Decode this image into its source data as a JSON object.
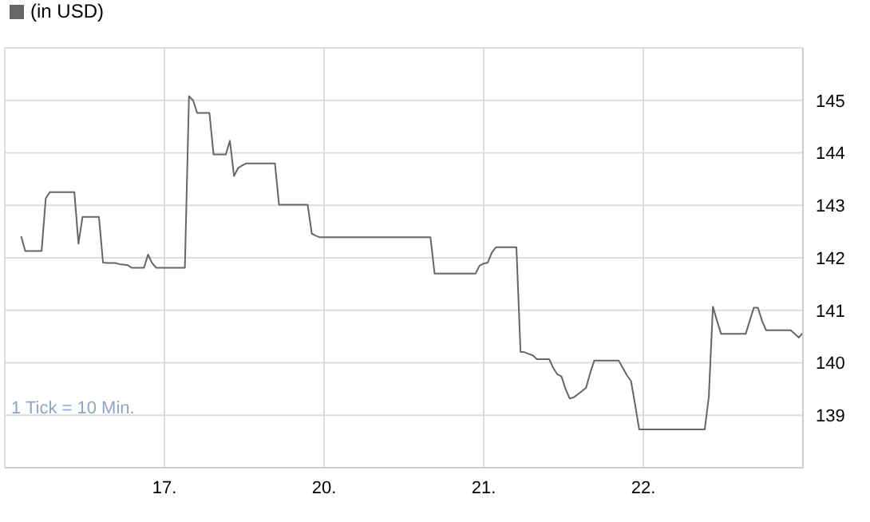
{
  "chart_data": {
    "type": "line",
    "annotations": [
      "1 Tick = 10 Min."
    ],
    "categories": [
      null,
      null,
      null,
      null,
      null,
      null,
      null,
      null,
      null,
      null,
      null,
      null,
      null,
      null,
      null,
      null,
      null,
      null,
      null,
      null,
      null,
      null,
      null,
      null,
      null,
      null,
      null,
      null,
      null,
      null,
      null,
      null,
      null,
      null,
      null,
      null,
      null,
      null,
      null,
      "17.",
      null,
      null,
      null,
      null,
      null,
      null,
      null,
      null,
      null,
      null,
      null,
      null,
      null,
      null,
      null,
      null,
      null,
      null,
      null,
      null,
      null,
      null,
      null,
      null,
      null,
      null,
      null,
      null,
      null,
      null,
      null,
      null,
      null,
      null,
      null,
      null,
      null,
      null,
      "20.",
      null,
      null,
      null,
      null,
      null,
      null,
      null,
      null,
      null,
      null,
      null,
      null,
      null,
      null,
      null,
      null,
      null,
      null,
      null,
      null,
      null,
      null,
      null,
      null,
      null,
      null,
      null,
      null,
      null,
      null,
      null,
      null,
      null,
      null,
      null,
      null,
      null,
      null,
      "21.",
      null,
      null,
      null,
      null,
      null,
      null,
      null,
      null,
      null,
      null,
      null,
      null,
      null,
      null,
      null,
      null,
      null,
      null,
      null,
      null,
      null,
      null,
      null,
      null,
      null,
      null,
      null,
      null,
      null,
      null,
      null,
      null,
      null,
      null,
      null,
      null,
      null,
      null,
      "22.",
      null,
      null,
      null,
      null,
      null,
      null,
      null,
      null,
      null,
      null,
      null,
      null,
      null,
      null,
      null,
      null,
      null,
      null,
      null,
      null,
      null,
      null,
      null,
      null,
      null,
      null,
      null,
      null,
      null,
      null,
      null,
      null,
      null,
      null,
      null,
      null,
      null,
      null,
      null
    ],
    "series": [
      {
        "name": "(in USD)",
        "color": "#666666",
        "values": [
          null,
          null,
          null,
          null,
          142.41,
          142.13,
          142.13,
          142.13,
          142.13,
          142.13,
          143.13,
          143.25,
          143.25,
          143.25,
          143.25,
          143.25,
          143.25,
          143.25,
          142.27,
          142.78,
          142.78,
          142.78,
          142.78,
          142.78,
          141.91,
          141.9,
          141.9,
          141.9,
          141.88,
          141.87,
          141.86,
          141.81,
          141.81,
          141.81,
          141.81,
          142.06,
          141.9,
          141.81,
          141.81,
          141.81,
          141.81,
          141.81,
          141.81,
          141.81,
          141.81,
          145.08,
          145.0,
          144.76,
          144.76,
          144.76,
          144.76,
          143.97,
          143.97,
          143.97,
          143.97,
          144.23,
          143.56,
          143.71,
          143.76,
          143.8,
          143.8,
          143.8,
          143.8,
          143.8,
          143.8,
          143.8,
          143.8,
          143.01,
          143.01,
          143.01,
          143.01,
          143.01,
          143.01,
          143.01,
          143.01,
          142.46,
          142.42,
          142.39,
          142.39,
          142.39,
          142.39,
          142.39,
          142.39,
          142.39,
          142.39,
          142.39,
          142.39,
          142.39,
          142.39,
          142.39,
          142.39,
          142.39,
          142.39,
          142.39,
          142.39,
          142.39,
          142.39,
          142.39,
          142.39,
          142.39,
          142.39,
          142.39,
          142.39,
          142.39,
          142.39,
          141.7,
          141.7,
          141.7,
          141.7,
          141.7,
          141.7,
          141.7,
          141.7,
          141.7,
          141.7,
          141.7,
          141.85,
          141.89,
          141.91,
          142.1,
          142.2,
          142.2,
          142.2,
          142.2,
          142.2,
          142.2,
          140.21,
          140.2,
          140.17,
          140.14,
          140.07,
          140.07,
          140.07,
          140.07,
          139.9,
          139.78,
          139.74,
          139.5,
          139.32,
          139.34,
          139.4,
          139.46,
          139.52,
          139.8,
          140.04,
          140.04,
          140.04,
          140.04,
          140.04,
          140.04,
          140.04,
          139.9,
          139.76,
          139.65,
          139.2,
          138.73,
          138.73,
          138.73,
          138.73,
          138.73,
          138.73,
          138.73,
          138.73,
          138.73,
          138.73,
          138.73,
          138.73,
          138.73,
          138.73,
          138.73,
          138.73,
          138.73,
          139.35,
          141.07,
          140.8,
          140.55,
          140.55,
          140.55,
          140.55,
          140.55,
          140.55,
          140.55,
          140.8,
          141.05,
          141.05,
          140.8,
          140.62,
          140.62,
          140.62,
          140.62,
          140.62,
          140.62,
          140.62,
          140.55,
          140.48,
          140.57
        ]
      }
    ],
    "ylim": [
      138,
      146
    ],
    "yticks": [
      139,
      140,
      141,
      142,
      143,
      144,
      145
    ],
    "grid": true,
    "legend": "top left",
    "marker": "none",
    "line_style": "solid"
  }
}
